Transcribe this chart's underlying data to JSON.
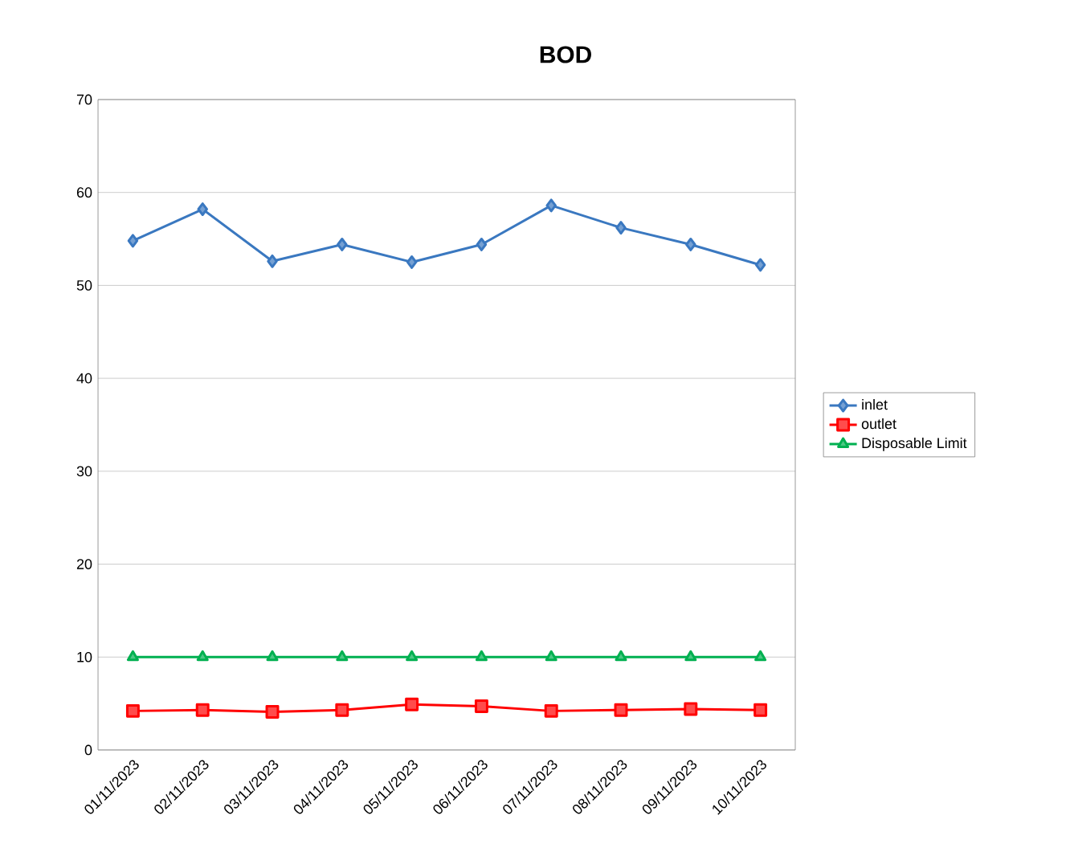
{
  "chart_data": {
    "type": "line",
    "title": "BOD",
    "categories": [
      "01/11/2023",
      "02/11/2023",
      "03/11/2023",
      "04/11/2023",
      "05/11/2023",
      "06/11/2023",
      "07/11/2023",
      "08/11/2023",
      "09/11/2023",
      "10/11/2023"
    ],
    "series": [
      {
        "name": "inlet",
        "color": "#3a78c0",
        "marker": "diamond",
        "values": [
          54.8,
          58.2,
          52.6,
          54.4,
          52.5,
          54.4,
          58.6,
          56.2,
          54.4,
          52.2
        ]
      },
      {
        "name": "outlet",
        "color": "#ff0000",
        "marker": "square",
        "values": [
          4.2,
          4.3,
          4.1,
          4.3,
          4.9,
          4.7,
          4.2,
          4.3,
          4.4,
          4.3
        ]
      },
      {
        "name": "Disposable Limit",
        "color": "#00b050",
        "marker": "triangle",
        "values": [
          10,
          10,
          10,
          10,
          10,
          10,
          10,
          10,
          10,
          10
        ]
      }
    ],
    "ylim": [
      0,
      70
    ],
    "yticks": [
      0,
      10,
      20,
      30,
      40,
      50,
      60,
      70
    ],
    "grid": "y",
    "legend": "right",
    "line_style": "solid"
  }
}
